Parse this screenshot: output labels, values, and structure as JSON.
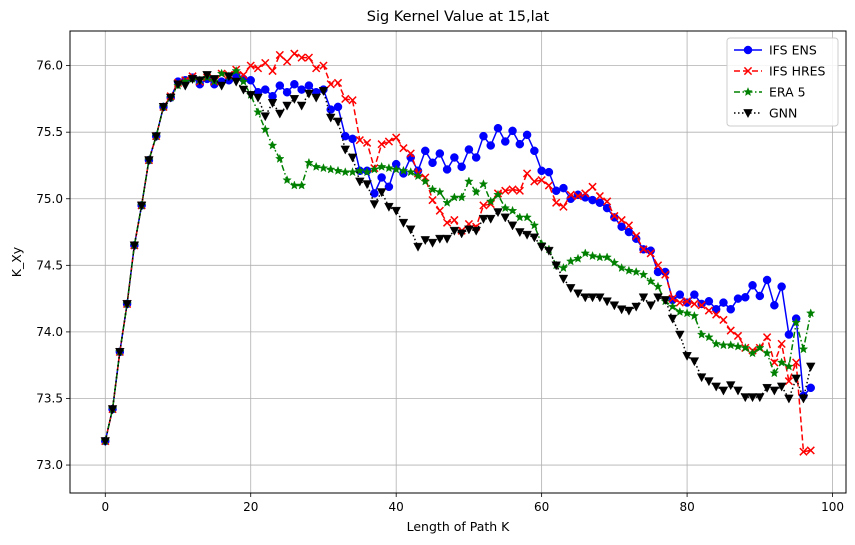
{
  "chart_data": {
    "type": "line",
    "title": "Sig Kernel Value at 15,lat",
    "xlabel": "Length of Path K",
    "ylabel": "K_Xy",
    "xlim": [
      -4.85,
      101.85
    ],
    "ylim": [
      72.79,
      76.26
    ],
    "x_ticks": [
      0,
      20,
      40,
      60,
      80,
      100
    ],
    "y_ticks": [
      73.0,
      73.5,
      74.0,
      74.5,
      75.0,
      75.5,
      76.0
    ],
    "x_tick_labels": [
      "0",
      "20",
      "40",
      "60",
      "80",
      "100"
    ],
    "y_tick_labels": [
      "73.0",
      "73.5",
      "74.0",
      "74.5",
      "75.0",
      "75.5",
      "76.0"
    ],
    "grid": true,
    "legend_position": "top-right",
    "series": [
      {
        "name": "IFS ENS",
        "color": "#0000ff",
        "dash": "solid",
        "marker": "circle",
        "values": [
          73.18,
          73.42,
          73.85,
          74.21,
          74.65,
          74.95,
          75.29,
          75.47,
          75.69,
          75.76,
          75.88,
          75.89,
          75.91,
          75.86,
          75.9,
          75.86,
          75.88,
          75.89,
          75.93,
          75.9,
          75.89,
          75.8,
          75.82,
          75.77,
          75.85,
          75.8,
          75.86,
          75.82,
          75.85,
          75.8,
          75.82,
          75.67,
          75.69,
          75.47,
          75.45,
          75.21,
          75.21,
          75.04,
          75.16,
          75.09,
          75.26,
          75.19,
          75.31,
          75.21,
          75.36,
          75.27,
          75.34,
          75.22,
          75.31,
          75.24,
          75.37,
          75.31,
          75.47,
          75.4,
          75.53,
          75.43,
          75.51,
          75.41,
          75.48,
          75.36,
          75.21,
          75.2,
          75.06,
          75.08,
          75.0,
          75.03,
          75.01,
          74.99,
          74.97,
          74.93,
          74.86,
          74.79,
          74.75,
          74.7,
          74.62,
          74.61,
          74.45,
          74.45,
          74.24,
          74.28,
          74.22,
          74.28,
          74.21,
          74.23,
          74.17,
          74.22,
          74.17,
          74.25,
          74.26,
          74.35,
          74.27,
          74.39,
          74.2,
          74.34,
          73.98,
          74.1,
          73.52,
          73.58
        ]
      },
      {
        "name": "IFS HRES",
        "color": "#ff0000",
        "dash": "dashed",
        "marker": "x",
        "values": [
          73.18,
          73.42,
          73.85,
          74.21,
          74.65,
          74.95,
          75.29,
          75.47,
          75.69,
          75.77,
          75.87,
          75.89,
          75.92,
          75.88,
          75.91,
          75.88,
          75.94,
          75.93,
          75.97,
          75.93,
          76.0,
          75.98,
          76.02,
          75.96,
          76.08,
          76.03,
          76.09,
          76.06,
          76.06,
          75.98,
          76.0,
          75.86,
          75.87,
          75.75,
          75.74,
          75.44,
          75.42,
          75.23,
          75.41,
          75.43,
          75.46,
          75.38,
          75.34,
          75.19,
          75.16,
          74.99,
          74.91,
          74.82,
          74.84,
          74.76,
          74.81,
          74.79,
          74.95,
          74.96,
          75.04,
          75.06,
          75.07,
          75.06,
          75.19,
          75.13,
          75.14,
          75.1,
          74.97,
          74.94,
          75.03,
          75.02,
          75.04,
          75.09,
          75.02,
          74.98,
          74.87,
          74.84,
          74.8,
          74.72,
          74.62,
          74.59,
          74.5,
          74.43,
          74.25,
          74.22,
          74.23,
          74.21,
          74.2,
          74.16,
          74.13,
          74.09,
          74.01,
          73.97,
          73.88,
          73.86,
          73.88,
          73.96,
          73.77,
          73.91,
          73.63,
          73.77,
          73.1,
          73.11
        ]
      },
      {
        "name": "ERA 5",
        "color": "#008000",
        "dash": "dashdot",
        "marker": "star",
        "values": [
          73.18,
          73.42,
          73.85,
          74.21,
          74.65,
          74.95,
          75.29,
          75.47,
          75.69,
          75.76,
          75.85,
          75.88,
          75.9,
          75.89,
          75.91,
          75.88,
          75.94,
          75.92,
          75.96,
          75.88,
          75.78,
          75.65,
          75.52,
          75.4,
          75.3,
          75.14,
          75.1,
          75.1,
          75.27,
          75.24,
          75.23,
          75.22,
          75.21,
          75.2,
          75.2,
          75.21,
          75.2,
          75.22,
          75.24,
          75.23,
          75.22,
          75.21,
          75.2,
          75.17,
          75.13,
          75.07,
          75.05,
          74.97,
          75.01,
          75.01,
          75.13,
          75.05,
          75.11,
          74.98,
          75.03,
          74.93,
          74.91,
          74.86,
          74.86,
          74.8,
          74.66,
          74.62,
          74.5,
          74.48,
          74.53,
          74.55,
          74.59,
          74.57,
          74.56,
          74.56,
          74.52,
          74.48,
          74.46,
          74.45,
          74.43,
          74.38,
          74.34,
          74.23,
          74.19,
          74.15,
          74.14,
          74.12,
          73.98,
          73.96,
          73.91,
          73.9,
          73.9,
          73.89,
          73.88,
          73.84,
          73.88,
          73.84,
          73.69,
          73.77,
          73.74,
          74.07,
          73.87,
          74.14
        ]
      },
      {
        "name": "GNN",
        "color": "#000000",
        "dash": "dotted",
        "marker": "triangle-down",
        "values": [
          73.18,
          73.42,
          73.85,
          74.21,
          74.65,
          74.95,
          75.29,
          75.47,
          75.69,
          75.76,
          75.86,
          75.85,
          75.9,
          75.89,
          75.93,
          75.9,
          75.85,
          75.92,
          75.88,
          75.82,
          75.78,
          75.76,
          75.62,
          75.72,
          75.64,
          75.7,
          75.75,
          75.7,
          75.79,
          75.76,
          75.81,
          75.61,
          75.58,
          75.37,
          75.31,
          75.13,
          75.11,
          74.96,
          75.05,
          74.94,
          74.91,
          74.82,
          74.77,
          74.64,
          74.69,
          74.67,
          74.7,
          74.7,
          74.76,
          74.74,
          74.77,
          74.76,
          74.85,
          74.85,
          74.9,
          74.86,
          74.8,
          74.75,
          74.73,
          74.71,
          74.64,
          74.61,
          74.5,
          74.4,
          74.33,
          74.29,
          74.26,
          74.26,
          74.26,
          74.23,
          74.2,
          74.17,
          74.16,
          74.19,
          74.26,
          74.2,
          74.26,
          74.24,
          74.1,
          73.98,
          73.82,
          73.78,
          73.66,
          73.63,
          73.59,
          73.56,
          73.6,
          73.56,
          73.51,
          73.51,
          73.51,
          73.58,
          73.56,
          73.59,
          73.5,
          73.65,
          73.5,
          73.74
        ]
      }
    ]
  }
}
